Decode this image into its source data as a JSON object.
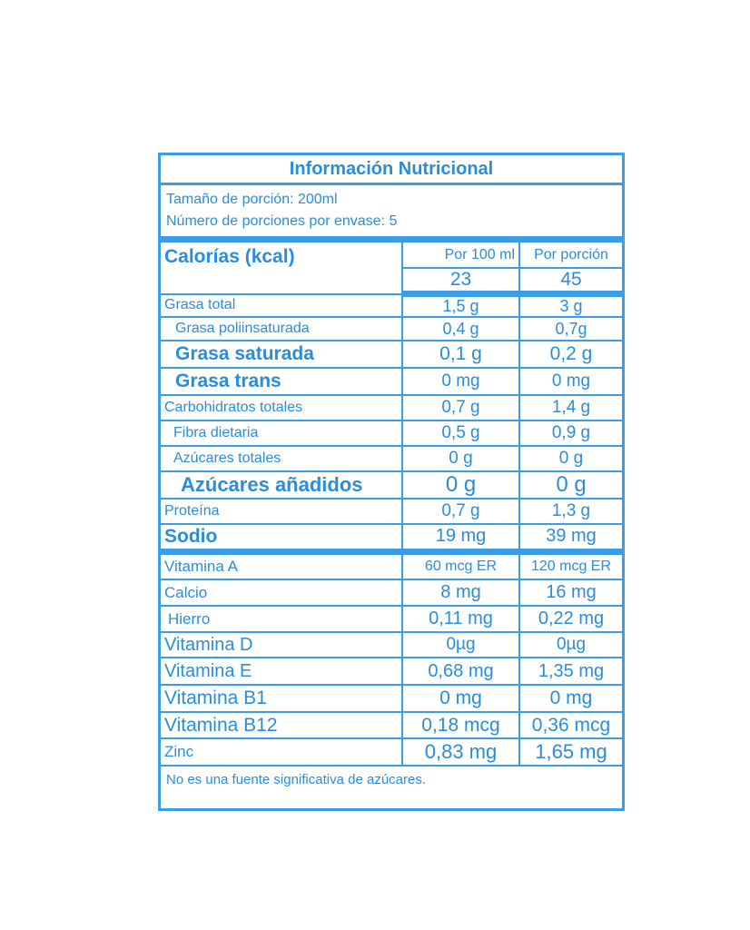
{
  "title": "Información Nutricional",
  "serving_size": "Tamaño de porción: 200ml",
  "servings_per_container": "Número de porciones por envase: 5",
  "calories": {
    "label": "Calorías (kcal)",
    "col1_header": "Por 100 ml",
    "col2_header": "Por porción",
    "per_100ml": "23",
    "per_serving": "45"
  },
  "nutrients": [
    {
      "name": "Grasa total",
      "per_100ml": "1,5 g",
      "per_serving": "3 g"
    },
    {
      "name": "Grasa poliinsaturada",
      "per_100ml": "0,4 g",
      "per_serving": "0,7g"
    },
    {
      "name": "Grasa saturada",
      "per_100ml": "0,1 g",
      "per_serving": "0,2 g"
    },
    {
      "name": "Grasa trans",
      "per_100ml": "0 mg",
      "per_serving": "0 mg"
    },
    {
      "name": "Carbohidratos totales",
      "per_100ml": "0,7 g",
      "per_serving": "1,4 g"
    },
    {
      "name": "Fibra dietaria",
      "per_100ml": "0,5 g",
      "per_serving": "0,9 g"
    },
    {
      "name": "Azúcares totales",
      "per_100ml": "0 g",
      "per_serving": "0 g"
    },
    {
      "name": "Azúcares añadidos",
      "per_100ml": "0 g",
      "per_serving": "0 g"
    },
    {
      "name": "Proteína",
      "per_100ml": "0,7 g",
      "per_serving": "1,3 g"
    },
    {
      "name": "Sodio",
      "per_100ml": "19 mg",
      "per_serving": "39 mg"
    }
  ],
  "vitamins": [
    {
      "name": "Vitamina A",
      "per_100ml": "60 mcg ER",
      "per_serving": "120 mcg ER"
    },
    {
      "name": "Calcio",
      "per_100ml": "8 mg",
      "per_serving": "16 mg"
    },
    {
      "name": "Hierro",
      "per_100ml": "0,11 mg",
      "per_serving": "0,22 mg"
    },
    {
      "name": "Vitamina D",
      "per_100ml": "0µg",
      "per_serving": "0µg"
    },
    {
      "name": "Vitamina E",
      "per_100ml": "0,68 mg",
      "per_serving": "1,35 mg"
    },
    {
      "name": "Vitamina B1",
      "per_100ml": "0 mg",
      "per_serving": "0 mg"
    },
    {
      "name": "Vitamina B12",
      "per_100ml": "0,18 mcg",
      "per_serving": "0,36 mcg"
    },
    {
      "name": "Zinc",
      "per_100ml": "0,83 mg",
      "per_serving": "1,65 mg"
    }
  ],
  "footer": "No es una fuente significativa de azúcares.",
  "colors": {
    "text": "#2a8ddb",
    "border": "#3b9de6"
  }
}
